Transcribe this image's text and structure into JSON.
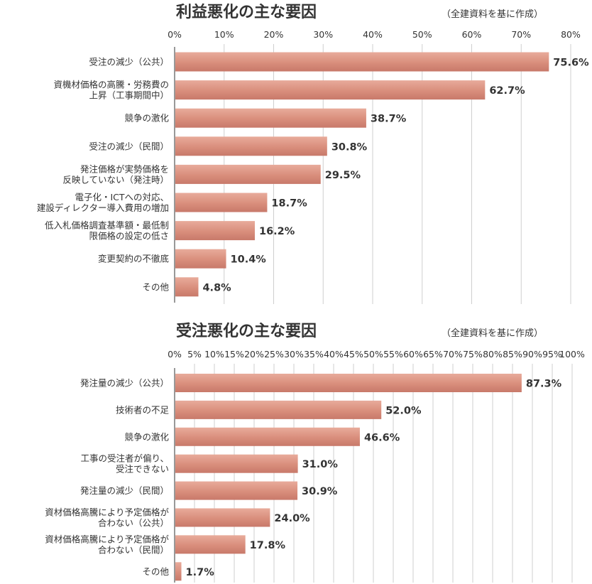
{
  "chart_data": [
    {
      "type": "bar",
      "orientation": "horizontal",
      "title": "利益悪化の主な要因",
      "note": "（全建資料を基に作成）",
      "unit": "%",
      "xlim": [
        0,
        80
      ],
      "ticks": [
        "0%",
        "10%",
        "20%",
        "30%",
        "40%",
        "50%",
        "60%",
        "70%",
        "80%"
      ],
      "categories": [
        [
          "受注の減少（公共）"
        ],
        [
          "資機材価格の高騰・労務費の",
          "上昇（工事期間中）"
        ],
        [
          "競争の激化"
        ],
        [
          "受注の減少（民間）"
        ],
        [
          "発注価格が実勢価格を",
          "反映していない（発注時）"
        ],
        [
          "電子化・ICTへの対応、",
          "建設ディレクター導入費用の増加"
        ],
        [
          "低入札価格調査基準額・最低制",
          "限価格の設定の低さ"
        ],
        [
          "変更契約の不徹底"
        ],
        [
          "その他"
        ]
      ],
      "values": [
        75.6,
        62.7,
        38.7,
        30.8,
        29.5,
        18.7,
        16.2,
        10.4,
        4.8
      ],
      "labels": [
        "75.6%",
        "62.7%",
        "38.7%",
        "30.8%",
        "29.5%",
        "18.7%",
        "16.2%",
        "10.4%",
        "4.8%"
      ],
      "bar_color": "#d98e7c",
      "grid": true
    },
    {
      "type": "bar",
      "orientation": "horizontal",
      "title": "受注悪化の主な要因",
      "note": "（全建資料を基に作成）",
      "unit": "%",
      "xlim": [
        0,
        100
      ],
      "ticks": [
        "0%",
        "5%",
        "10%",
        "15%",
        "20%",
        "25%",
        "30%",
        "35%",
        "40%",
        "45%",
        "50%",
        "55%",
        "60%",
        "65%",
        "70%",
        "75%",
        "80%",
        "85%",
        "90%",
        "95%",
        "100%"
      ],
      "categories": [
        [
          "発注量の減少（公共）"
        ],
        [
          "技術者の不足"
        ],
        [
          "競争の激化"
        ],
        [
          "工事の受注者が偏り、",
          "受注できない"
        ],
        [
          "発注量の減少（民間）"
        ],
        [
          "資材価格高騰により予定価格が",
          "合わない（公共）"
        ],
        [
          "資材価格高騰により予定価格が",
          "合わない（民間）"
        ],
        [
          "その他"
        ]
      ],
      "values": [
        87.3,
        52.0,
        46.6,
        31.0,
        30.9,
        24.0,
        17.8,
        1.7
      ],
      "labels": [
        "87.3%",
        "52.0%",
        "46.6%",
        "31.0%",
        "30.9%",
        "24.0%",
        "17.8%",
        "1.7%"
      ],
      "bar_color": "#d98e7c",
      "grid": true
    }
  ]
}
